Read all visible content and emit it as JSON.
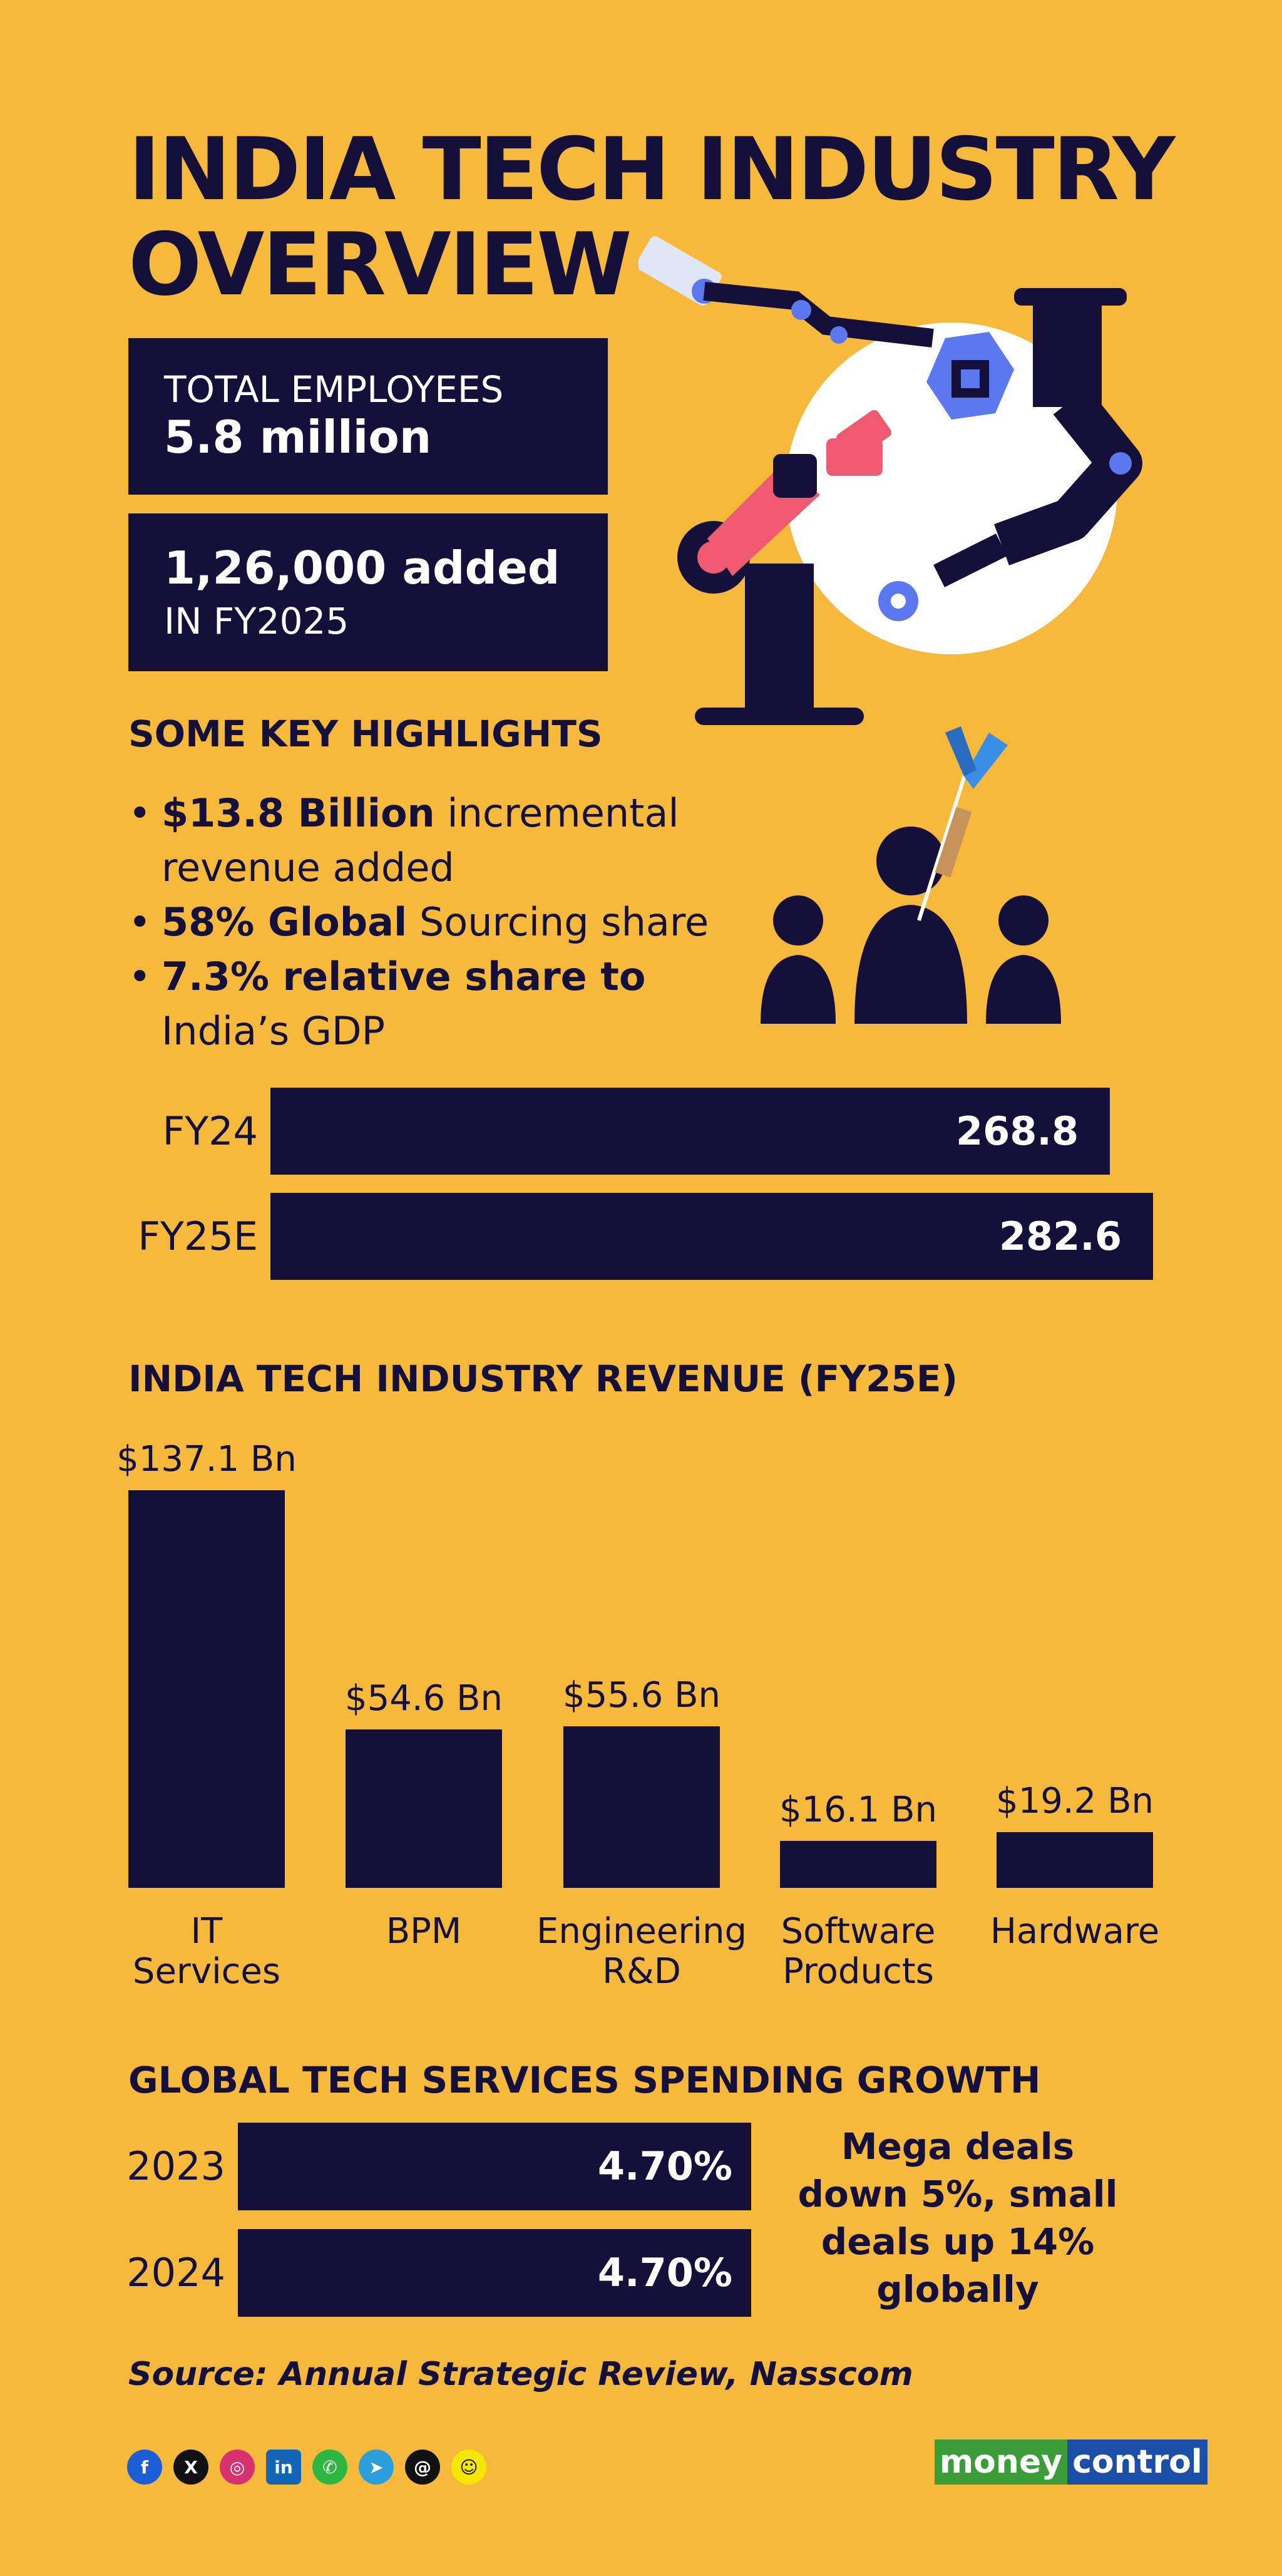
{
  "title": {
    "line1": "INDIA TECH INDUSTRY",
    "line2": "OVERVIEW"
  },
  "employees": {
    "label": "TOTAL EMPLOYEES",
    "value": "5.8 million"
  },
  "added": {
    "value": "1,26,000 added",
    "label": "IN FY2025"
  },
  "highlights": {
    "heading": "SOME KEY HIGHLIGHTS",
    "items": [
      {
        "bold": "$13.8 Billion",
        "rest": " incremental",
        "line2": "revenue added"
      },
      {
        "bold": "58% Global",
        "rest": " Sourcing share",
        "line2": ""
      },
      {
        "bold": "7.3% relative share to",
        "rest": "",
        "line2": "India’s GDP"
      }
    ]
  },
  "colors": {
    "background": "#f6b93b",
    "navy": "#14103a",
    "pink": "#ef5a70",
    "blue": "#5b78f0"
  },
  "icons": [
    "robot-arm-icon",
    "people-target-icon"
  ],
  "chart_data": [
    {
      "type": "bar",
      "orientation": "horizontal",
      "title": "",
      "categories": [
        "FY24",
        "FY25E"
      ],
      "values": [
        268.8,
        282.6
      ],
      "value_labels": [
        "268.8",
        "282.6"
      ]
    },
    {
      "type": "bar",
      "orientation": "vertical",
      "title": "INDIA TECH INDUSTRY REVENUE (FY25E)",
      "categories": [
        [
          "IT",
          "Services"
        ],
        [
          "BPM"
        ],
        [
          "Engineering",
          "R&D"
        ],
        [
          "Software",
          "Products"
        ],
        [
          "Hardware"
        ]
      ],
      "values": [
        137.1,
        54.6,
        55.6,
        16.1,
        19.2
      ],
      "value_labels": [
        "$137.1 Bn",
        "$54.6 Bn",
        "$55.6 Bn",
        "$16.1 Bn",
        "$19.2 Bn"
      ],
      "unit": "Bn"
    },
    {
      "type": "bar",
      "orientation": "horizontal",
      "title": "GLOBAL TECH SERVICES SPENDING GROWTH",
      "categories": [
        "2023",
        "2024"
      ],
      "values": [
        4.7,
        4.7
      ],
      "value_labels": [
        "4.70%",
        "4.70%"
      ],
      "annotation": [
        "Mega deals",
        "down 5%, small",
        "deals up 14%",
        "globally"
      ]
    }
  ],
  "source": "Source: Annual Strategic Review, Nasscom",
  "social": [
    "f",
    "X",
    "◎",
    "in",
    "✆",
    "➤",
    "@",
    "☺"
  ],
  "brand": {
    "part1": "money",
    "part2": "control"
  }
}
